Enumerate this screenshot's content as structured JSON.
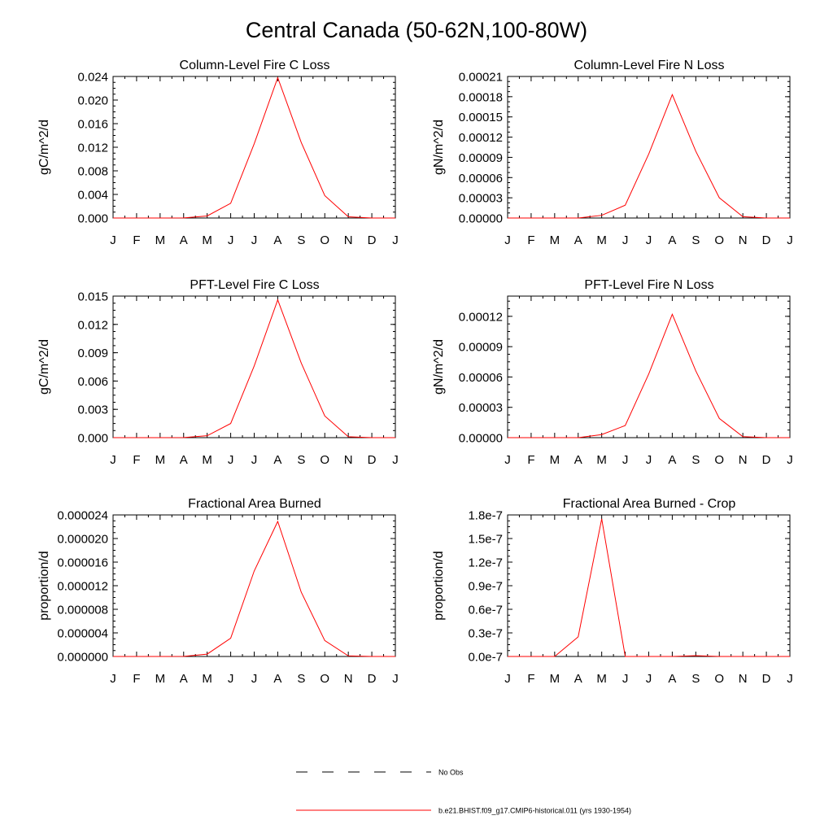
{
  "title": "Central Canada (50-62N,100-80W)",
  "line_color": "#ff0000",
  "months": [
    "J",
    "F",
    "M",
    "A",
    "M",
    "J",
    "J",
    "A",
    "S",
    "O",
    "N",
    "D",
    "J"
  ],
  "chart_data": [
    {
      "type": "line",
      "title": "Column-Level Fire C Loss",
      "ylabel": "gC/m^2/d",
      "ylim": [
        0,
        0.024
      ],
      "yticks": [
        "0.000",
        "0.004",
        "0.008",
        "0.012",
        "0.016",
        "0.020",
        "0.024"
      ],
      "x": [
        "J",
        "F",
        "M",
        "A",
        "M",
        "J",
        "J",
        "A",
        "S",
        "O",
        "N",
        "D",
        "J"
      ],
      "series": [
        {
          "name": "b.e21.BHIST.f09_g17.CMIP6-historical.011 (yrs 1930-1954)",
          "values": [
            0.0,
            0.0,
            0.0,
            2e-05,
            0.00035,
            0.0025,
            0.0126,
            0.0238,
            0.0128,
            0.0038,
            0.0002,
            0.0,
            0.0
          ]
        }
      ]
    },
    {
      "type": "line",
      "title": "Column-Level Fire N Loss",
      "ylabel": "gN/m^2/d",
      "ylim": [
        0,
        0.00021
      ],
      "yticks": [
        "0.00000",
        "0.00003",
        "0.00006",
        "0.00009",
        "0.00012",
        "0.00015",
        "0.00018",
        "0.00021"
      ],
      "x": [
        "J",
        "F",
        "M",
        "A",
        "M",
        "J",
        "J",
        "A",
        "S",
        "O",
        "N",
        "D",
        "J"
      ],
      "series": [
        {
          "name": "b.e21.BHIST.f09_g17.CMIP6-historical.011 (yrs 1930-1954)",
          "values": [
            0.0,
            0.0,
            0.0,
            0.0,
            4e-06,
            1.9e-05,
            9.5e-05,
            0.000183,
            9.9e-05,
            3e-05,
            2e-06,
            0.0,
            0.0
          ]
        }
      ]
    },
    {
      "type": "line",
      "title": "PFT-Level Fire C Loss",
      "ylabel": "gC/m^2/d",
      "ylim": [
        0,
        0.015
      ],
      "yticks": [
        "0.000",
        "0.003",
        "0.006",
        "0.009",
        "0.012",
        "0.015"
      ],
      "x": [
        "J",
        "F",
        "M",
        "A",
        "M",
        "J",
        "J",
        "A",
        "S",
        "O",
        "N",
        "D",
        "J"
      ],
      "series": [
        {
          "name": "b.e21.BHIST.f09_g17.CMIP6-historical.011 (yrs 1930-1954)",
          "values": [
            0.0,
            0.0,
            0.0,
            1e-05,
            0.0002,
            0.0015,
            0.0076,
            0.0146,
            0.0079,
            0.0023,
            0.0001,
            0.0,
            0.0
          ]
        }
      ]
    },
    {
      "type": "line",
      "title": "PFT-Level Fire N Loss",
      "ylabel": "gN/m^2/d",
      "ylim": [
        0,
        0.00014
      ],
      "yticks": [
        "0.00000",
        "0.00003",
        "0.00006",
        "0.00009",
        "0.00012"
      ],
      "x": [
        "J",
        "F",
        "M",
        "A",
        "M",
        "J",
        "J",
        "A",
        "S",
        "O",
        "N",
        "D",
        "J"
      ],
      "series": [
        {
          "name": "b.e21.BHIST.f09_g17.CMIP6-historical.011 (yrs 1930-1954)",
          "values": [
            0.0,
            0.0,
            0.0,
            0.0,
            3e-06,
            1.2e-05,
            6.3e-05,
            0.000122,
            6.6e-05,
            1.9e-05,
            1e-06,
            0.0,
            0.0
          ]
        }
      ]
    },
    {
      "type": "line",
      "title": "Fractional Area Burned",
      "ylabel": "proportion/d",
      "ylim": [
        0,
        2.4e-05
      ],
      "yticks": [
        "0.000000",
        "0.000004",
        "0.000008",
        "0.000012",
        "0.000016",
        "0.000020",
        "0.000024"
      ],
      "x": [
        "J",
        "F",
        "M",
        "A",
        "M",
        "J",
        "J",
        "A",
        "S",
        "O",
        "N",
        "D",
        "J"
      ],
      "series": [
        {
          "name": "b.e21.BHIST.f09_g17.CMIP6-historical.011 (yrs 1930-1954)",
          "values": [
            0.0,
            0.0,
            0.0,
            2e-08,
            4e-07,
            3.1e-06,
            1.45e-05,
            2.29e-05,
            1.09e-05,
            2.7e-06,
            1e-07,
            0.0,
            0.0
          ]
        }
      ]
    },
    {
      "type": "line",
      "title": "Fractional Area Burned - Crop",
      "ylabel": "proportion/d",
      "ylim": [
        0,
        1.8e-07
      ],
      "yticks": [
        "0.0e-7",
        "0.3e-7",
        "0.6e-7",
        "0.9e-7",
        "1.2e-7",
        "1.5e-7",
        "1.8e-7"
      ],
      "x": [
        "J",
        "F",
        "M",
        "A",
        "M",
        "J",
        "J",
        "A",
        "S",
        "O",
        "N",
        "D",
        "J"
      ],
      "series": [
        {
          "name": "b.e21.BHIST.f09_g17.CMIP6-historical.011 (yrs 1930-1954)",
          "values": [
            0.0,
            0.0,
            0.0,
            2.5e-08,
            1.75e-07,
            0.0,
            0.0,
            0.0,
            1e-09,
            0.0,
            0.0,
            0.0,
            0.0
          ]
        }
      ]
    }
  ],
  "legend": [
    {
      "label": "No Obs",
      "style": "dashed",
      "color": "#000000"
    },
    {
      "label": "b.e21.BHIST.f09_g17.CMIP6-historical.011 (yrs 1930-1954)",
      "style": "solid",
      "color": "#ff0000"
    }
  ]
}
